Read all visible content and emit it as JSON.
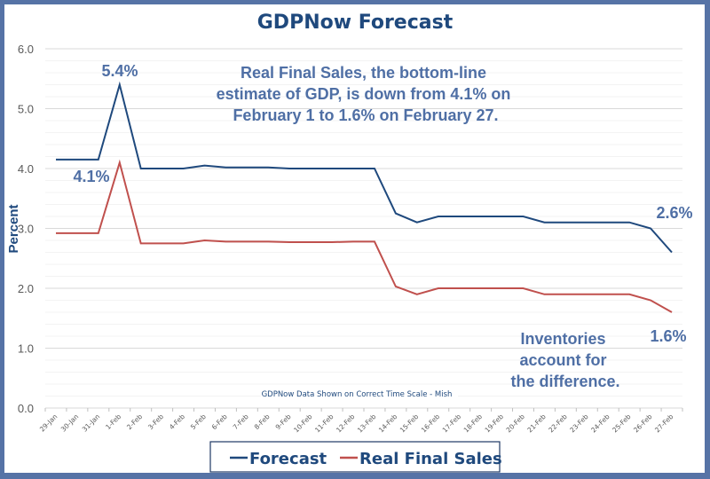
{
  "chart_data": {
    "type": "line",
    "title": "GDPNow Forecast",
    "xlabel": "",
    "ylabel": "Percent",
    "ylim": [
      0,
      6
    ],
    "y_ticks": [
      "0.0",
      "1.0",
      "2.0",
      "3.0",
      "4.0",
      "5.0",
      "6.0"
    ],
    "y_minor_step": 0.2,
    "grid": true,
    "legend_position": "bottom-center",
    "categories": [
      "29-Jan",
      "30-Jan",
      "31-Jan",
      "1-Feb",
      "2-Feb",
      "3-Feb",
      "4-Feb",
      "5-Feb",
      "6-Feb",
      "7-Feb",
      "8-Feb",
      "9-Feb",
      "10-Feb",
      "11-Feb",
      "12-Feb",
      "13-Feb",
      "14-Feb",
      "15-Feb",
      "16-Feb",
      "17-Feb",
      "18-Feb",
      "19-Feb",
      "20-Feb",
      "21-Feb",
      "22-Feb",
      "23-Feb",
      "24-Feb",
      "25-Feb",
      "26-Feb",
      "27-Feb"
    ],
    "series": [
      {
        "name": "Forecast",
        "color": "#1f497d",
        "values": [
          4.15,
          4.15,
          4.15,
          5.4,
          4.0,
          4.0,
          4.0,
          4.05,
          4.02,
          4.02,
          4.02,
          4.0,
          4.0,
          4.0,
          4.0,
          4.0,
          3.25,
          3.1,
          3.2,
          3.2,
          3.2,
          3.2,
          3.2,
          3.1,
          3.1,
          3.1,
          3.1,
          3.1,
          3.0,
          2.6
        ]
      },
      {
        "name": "Real Final Sales",
        "color": "#c0504d",
        "values": [
          2.92,
          2.92,
          2.92,
          4.1,
          2.75,
          2.75,
          2.75,
          2.8,
          2.78,
          2.78,
          2.78,
          2.77,
          2.77,
          2.77,
          2.78,
          2.78,
          2.03,
          1.9,
          2.0,
          2.0,
          2.0,
          2.0,
          2.0,
          1.9,
          1.9,
          1.9,
          1.9,
          1.9,
          1.8,
          1.6
        ]
      }
    ],
    "data_labels": [
      {
        "series": "Forecast",
        "category": "1-Feb",
        "text": "5.4%"
      },
      {
        "series": "Real Final Sales",
        "category": "1-Feb",
        "text": "4.1%"
      },
      {
        "series": "Forecast",
        "category": "27-Feb",
        "text": "2.6%"
      },
      {
        "series": "Real Final Sales",
        "category": "27-Feb",
        "text": "1.6%"
      }
    ],
    "annotations": {
      "main": [
        "Real Final Sales, the bottom-line",
        "estimate of GDP, is down from 4.1% on",
        "February 1 to 1.6% on February 27."
      ],
      "inventories": [
        "Inventories",
        "account for",
        "the difference."
      ],
      "source": "GDPNow Data Shown on Correct Time Scale - Mish"
    }
  },
  "colors": {
    "frame": "#5673a6",
    "title": "#1f497d",
    "annotation": "#4f6fa5",
    "grid_major": "#d9d9d9",
    "grid_minor": "#efefef"
  }
}
